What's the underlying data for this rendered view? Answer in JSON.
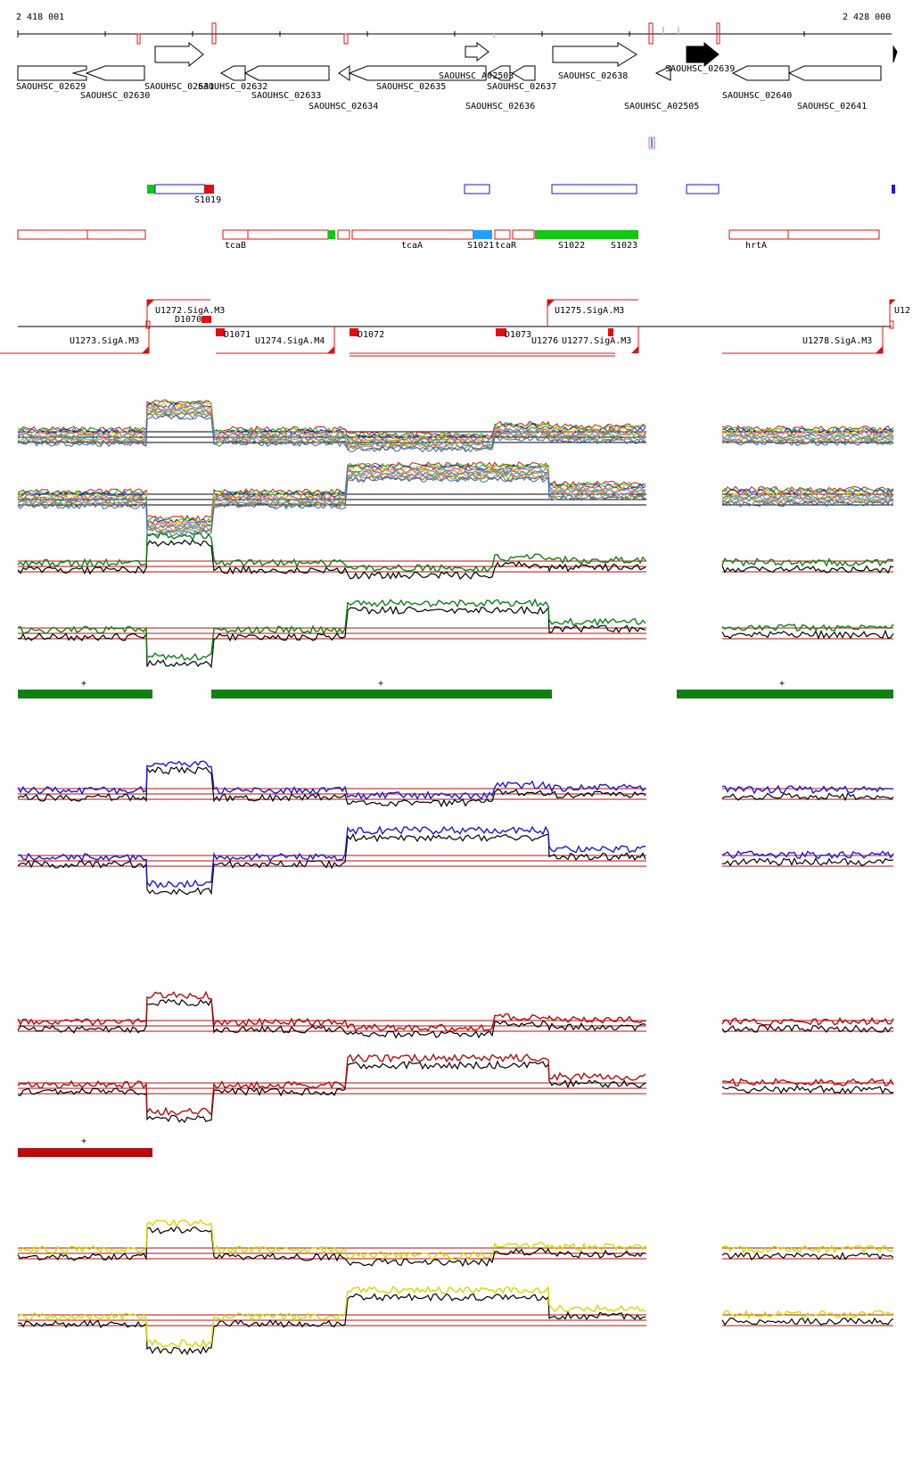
{
  "coords": {
    "start": "2 418 001",
    "end": "2 428 000"
  },
  "colors": {
    "gene": "#000000",
    "blue": "#1a1ad8",
    "red": "#e01010",
    "green": "#11c711",
    "light_blue": "#1fa0ff",
    "dark_green": "#118011",
    "dark_red": "#b80c0c",
    "yellow": "#d8d800",
    "olive": "#8a8a4a",
    "pink": "#ff55aa"
  },
  "genes": {
    "names": [
      "SAOUHSC_02629",
      "SAOUHSC_02630",
      "SAOUHSC_02631",
      "SAOUHSC_02632",
      "SAOUHSC_02633",
      "SAOUHSC_02634",
      "SAOUHSC_02635",
      "SAOUHSC_A02503",
      "SAOUHSC_02636",
      "SAOUHSC_02637",
      "SAOUHSC_02638",
      "SAOUHSC_02639",
      "SAOUHSC_A02505",
      "SAOUHSC_02640",
      "SAOUHSC_02641"
    ]
  },
  "tracks": {
    "blue_label": "S1019",
    "red_labels": [
      "tcaB",
      "tcaA",
      "S1021",
      "tcaR",
      "S1022",
      "S1023",
      "hrtA"
    ],
    "promoters": [
      "U1272.SigA.M3",
      "U1273.SigA.M3",
      "U1274.SigA.M4",
      "U1275.SigA.M3",
      "U1276",
      "U1277.SigA.M3",
      "U1278.SigA.M3",
      "U12"
    ],
    "d_labels": [
      "D1070",
      "D1071",
      "D1072",
      "D1073"
    ],
    "plus": "+"
  },
  "chart_data": {
    "type": "line",
    "title": "",
    "x_range": [
      "2 418 001",
      "2 428 000"
    ],
    "panels": [
      {
        "name": "",
        "color": "multi",
        "segments": [
          0,
          1,
          0,
          -0.2,
          0.2,
          0.1
        ]
      },
      {
        "name": "",
        "color": "multi",
        "segments": [
          0,
          -1,
          0,
          1,
          1,
          0.3
        ]
      },
      {
        "name": "",
        "color": "green",
        "segments": [
          0,
          1,
          0,
          -0.2,
          0.2,
          0.1
        ]
      },
      {
        "name": "",
        "color": "green",
        "segments": [
          0,
          -1,
          0,
          1,
          1,
          0.3
        ]
      },
      {
        "name": "",
        "color": "blue",
        "segments": [
          0,
          1,
          0,
          -0.2,
          0.2,
          0.1
        ]
      },
      {
        "name": "",
        "color": "blue",
        "segments": [
          0,
          -1,
          0,
          1,
          1,
          0.3
        ]
      },
      {
        "name": "",
        "color": "red",
        "segments": [
          0,
          1,
          0,
          -0.2,
          0.2,
          0.1
        ]
      },
      {
        "name": "",
        "color": "red",
        "segments": [
          0,
          -1,
          0,
          1,
          1,
          0.3
        ]
      },
      {
        "name": "",
        "color": "yellow",
        "segments": [
          0,
          1,
          0,
          -0.2,
          0.2,
          0.1
        ]
      },
      {
        "name": "",
        "color": "yellow",
        "segments": [
          0,
          -1,
          0,
          1,
          1,
          0.3
        ]
      }
    ]
  }
}
